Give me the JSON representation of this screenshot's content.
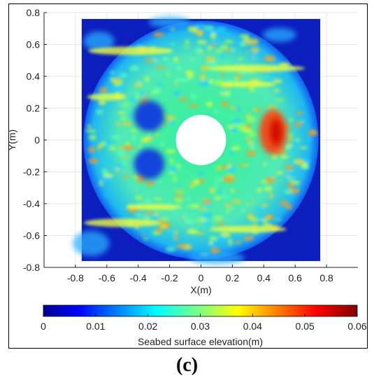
{
  "chart_data": {
    "type": "heatmap",
    "title": "",
    "xlabel": "X(m)",
    "ylabel": "Y(m)",
    "xlim": [
      -1.0,
      1.0
    ],
    "ylim": [
      -0.8,
      0.8
    ],
    "x_ticks": [
      "-0.8",
      "-0.6",
      "-0.4",
      "-0.2",
      "0",
      "0.2",
      "0.4",
      "0.6",
      "0.8"
    ],
    "y_ticks": [
      "0.8",
      "0.6",
      "0.4",
      "0.2",
      "0",
      "-0.2",
      "-0.4",
      "-0.6",
      "-0.8"
    ],
    "grid": true,
    "colormap": "jet",
    "colorbar": {
      "label": "Seabed surface elevation(m)",
      "range": [
        0,
        0.06
      ],
      "ticks": [
        "0",
        "0.01",
        "0.02",
        "0.03",
        "0.04",
        "0.05",
        "0.06"
      ],
      "placement": "bottom"
    },
    "data_extent": {
      "x": [
        -0.76,
        0.76
      ],
      "y": [
        -0.76,
        0.76
      ]
    },
    "scour_disc_radius": 0.76,
    "pile_radius": 0.16,
    "features": [
      {
        "label": "deposition hotspot",
        "x": 0.46,
        "y": 0.05,
        "value": 0.052
      },
      {
        "label": "scour hole",
        "x": -0.33,
        "y": 0.15,
        "value": 0.006
      },
      {
        "label": "scour hole",
        "x": -0.33,
        "y": -0.15,
        "value": 0.004
      }
    ]
  },
  "panel_label": "(c)"
}
